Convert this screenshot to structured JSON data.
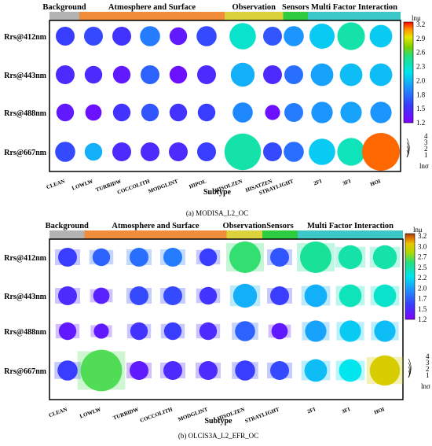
{
  "chart_data": [
    {
      "type": "bubble-matrix",
      "caption": "(a) MODISA_L2_OC",
      "xlabel": "Subtype",
      "rows": [
        "Rrs@412nm",
        "Rrs@443nm",
        "Rrs@488nm",
        "Rrs@667nm"
      ],
      "columns": [
        "CLEAN",
        "LOWLW",
        "TURBIDW",
        "COCCOLITH",
        "MODGLINT",
        "HIPOL",
        "HISOLZEN",
        "HISATZEN",
        "STRAYLIGHT",
        "2FI",
        "3FI",
        "HOI"
      ],
      "categories": [
        {
          "name": "Background",
          "color": "#b3b3b3",
          "span": [
            0,
            0
          ]
        },
        {
          "name": "Atmosphere and Surface",
          "color": "#f08c3a",
          "span": [
            1,
            5
          ]
        },
        {
          "name": "Observation",
          "color": "#dcd23c",
          "span": [
            6,
            7
          ]
        },
        {
          "name": "Sensors",
          "color": "#2ecc40",
          "span": [
            8,
            8
          ]
        },
        {
          "name": "Multi Factor Interaction",
          "color": "#3cc8c8",
          "span": [
            9,
            11
          ]
        }
      ],
      "color_legend": {
        "title": "lnμ",
        "min": 1.2,
        "max": 3.2,
        "ticks": [
          "3.2",
          "2.9",
          "2.6",
          "2.3",
          "2.0",
          "1.8",
          "1.5",
          "1.2"
        ]
      },
      "size_legend": {
        "title": "lnσ",
        "ticks": [
          "4",
          "3",
          "2",
          "1"
        ]
      },
      "color_values": [
        [
          1.55,
          1.6,
          1.5,
          1.8,
          1.35,
          1.6,
          2.3,
          1.65,
          1.9,
          2.1,
          2.4,
          2.1
        ],
        [
          1.45,
          1.45,
          1.35,
          1.7,
          1.3,
          1.45,
          2.0,
          1.45,
          1.75,
          1.95,
          2.05,
          2.05
        ],
        [
          1.35,
          1.3,
          1.5,
          1.65,
          1.5,
          1.55,
          1.85,
          1.3,
          1.8,
          1.9,
          1.95,
          1.9
        ],
        [
          1.6,
          2.0,
          1.45,
          1.45,
          1.45,
          1.55,
          2.4,
          1.6,
          1.75,
          2.1,
          2.35,
          3.1
        ]
      ],
      "size_values": [
        [
          1.0,
          1.0,
          1.0,
          1.1,
          0.9,
          1.1,
          1.6,
          1.0,
          1.1,
          1.5,
          1.7,
          1.3
        ],
        [
          1.0,
          0.9,
          0.9,
          1.0,
          0.9,
          1.0,
          1.4,
          1.0,
          1.0,
          1.3,
          1.3,
          1.3
        ],
        [
          0.9,
          0.8,
          0.9,
          0.9,
          0.9,
          0.9,
          1.1,
          0.7,
          1.0,
          1.2,
          1.2,
          1.2
        ],
        [
          1.1,
          0.9,
          1.0,
          1.0,
          1.0,
          1.0,
          2.4,
          1.0,
          1.1,
          1.6,
          1.7,
          2.5
        ]
      ]
    },
    {
      "type": "bubble-matrix",
      "caption": "(b) OLCIS3A_L2_EFR_OC",
      "xlabel": "Subtype",
      "rows": [
        "Rrs@412nm",
        "Rrs@443nm",
        "Rrs@488nm",
        "Rrs@667nm"
      ],
      "columns": [
        "CLEAN",
        "LOWLW",
        "TURBIDW",
        "COCCOLITH",
        "MODGLINT",
        "HISOLZEN",
        "STRAYLIGHT",
        "2FI",
        "3FI",
        "HOI"
      ],
      "categories": [
        {
          "name": "Background",
          "color": "#b3b3b3",
          "span": [
            0,
            0
          ]
        },
        {
          "name": "Atmosphere and Surface",
          "color": "#f08c3a",
          "span": [
            1,
            4
          ]
        },
        {
          "name": "Observation",
          "color": "#dcd23c",
          "span": [
            5,
            5
          ]
        },
        {
          "name": "Sensors",
          "color": "#2ecc40",
          "span": [
            6,
            6
          ]
        },
        {
          "name": "Multi Factor Interaction",
          "color": "#3cc8c8",
          "span": [
            7,
            9
          ]
        }
      ],
      "color_legend": {
        "title": "lnμ",
        "min": 1.2,
        "max": 3.2,
        "ticks": [
          "3.2",
          "3.0",
          "2.7",
          "2.5",
          "2.2",
          "2.0",
          "1.7",
          "1.5",
          "1.2"
        ]
      },
      "size_legend": {
        "title": "lnσ",
        "ticks": [
          "4",
          "3",
          "2",
          "1"
        ]
      },
      "color_values": [
        [
          1.55,
          1.7,
          1.75,
          1.8,
          1.55,
          2.55,
          1.65,
          2.45,
          2.4,
          2.4
        ],
        [
          1.45,
          1.4,
          1.6,
          1.6,
          1.5,
          2.0,
          1.55,
          2.0,
          2.35,
          2.3
        ],
        [
          1.35,
          1.35,
          1.5,
          1.55,
          1.45,
          1.7,
          1.35,
          1.95,
          2.1,
          2.05
        ],
        [
          1.55,
          2.6,
          1.35,
          1.45,
          1.45,
          1.55,
          1.6,
          2.05,
          2.2,
          2.9
        ]
      ],
      "size_values": [
        [
          1.0,
          0.9,
          1.0,
          1.0,
          0.9,
          2.0,
          1.0,
          2.0,
          1.4,
          1.4
        ],
        [
          1.0,
          0.8,
          1.0,
          1.0,
          0.9,
          1.4,
          1.0,
          1.3,
          1.3,
          1.3
        ],
        [
          0.9,
          0.7,
          0.9,
          0.9,
          0.9,
          1.1,
          0.8,
          1.2,
          1.2,
          1.2
        ],
        [
          1.1,
          2.8,
          1.0,
          1.0,
          1.0,
          1.1,
          1.0,
          1.3,
          1.3,
          1.9
        ]
      ]
    }
  ]
}
